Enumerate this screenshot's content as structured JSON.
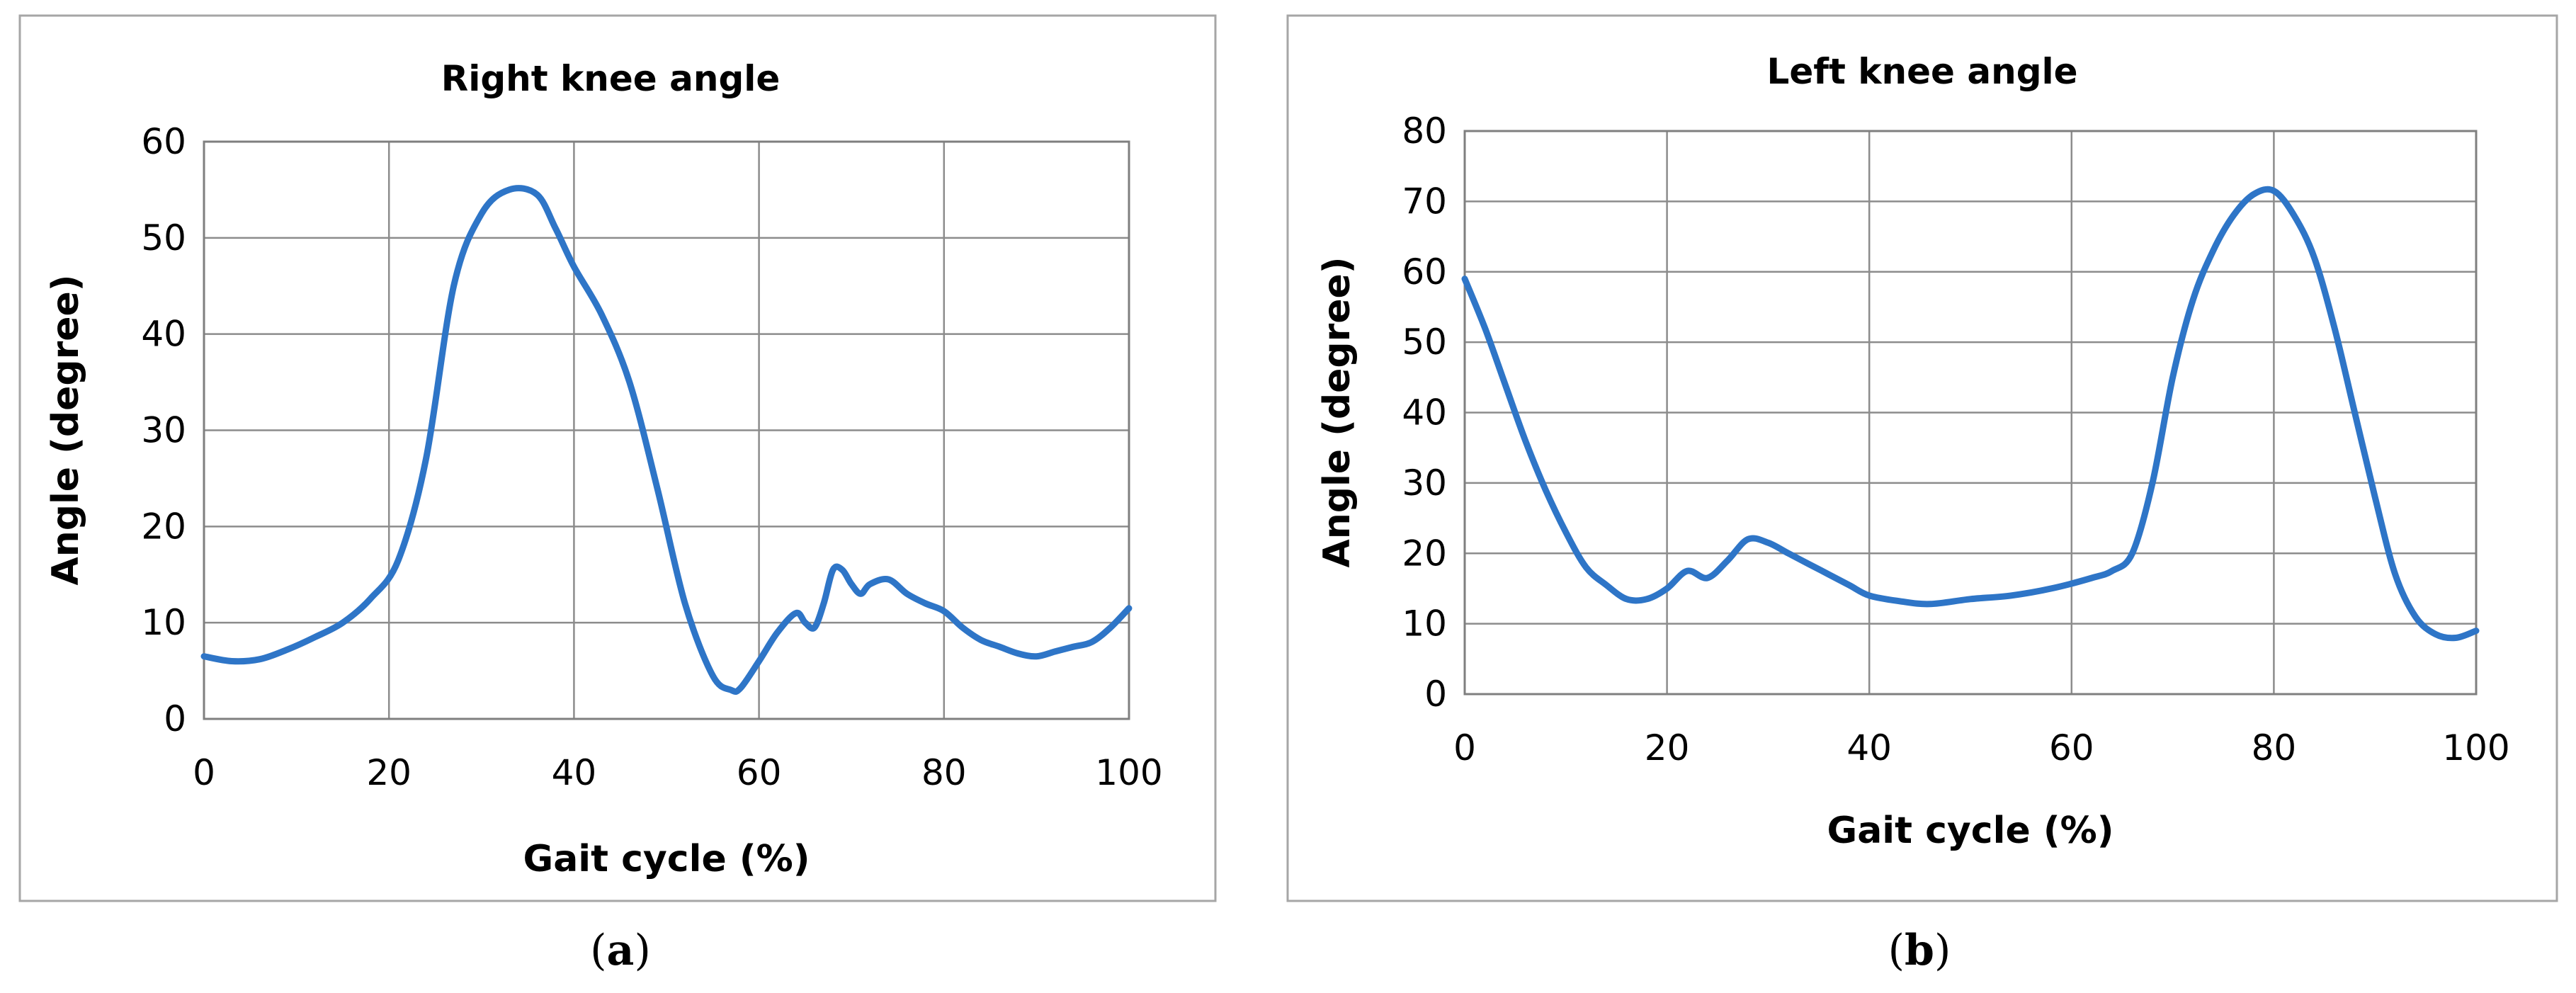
{
  "chart_data": [
    {
      "type": "line",
      "title": "Right knee angle",
      "xlabel": "Gait cycle (%)",
      "ylabel": "Angle (degree)",
      "xlim": [
        0,
        100
      ],
      "ylim": [
        0,
        60
      ],
      "xticks": [
        0,
        20,
        40,
        60,
        80,
        100
      ],
      "yticks": [
        0,
        10,
        20,
        30,
        40,
        50,
        60
      ],
      "grid": true,
      "caption_letter": "a",
      "color": "#2e75c7",
      "series": [
        {
          "x": [
            0,
            3,
            6,
            9,
            12,
            15,
            18,
            21,
            24,
            27,
            30,
            33,
            36,
            38,
            40,
            43,
            46,
            49,
            52,
            55,
            57,
            58,
            60,
            62,
            64,
            65,
            66,
            67,
            68,
            69,
            70,
            71,
            72,
            74,
            76,
            78,
            80,
            82,
            84,
            86,
            88,
            90,
            92,
            94,
            96,
            98,
            100
          ],
          "y": [
            6.5,
            6,
            6.2,
            7.2,
            8.5,
            10,
            12.5,
            16.5,
            27,
            45,
            52.5,
            55,
            54.5,
            51,
            47,
            42,
            35,
            24,
            12,
            4.5,
            3,
            3.2,
            6,
            9,
            11,
            10,
            9.5,
            12,
            15.5,
            15.5,
            14,
            13,
            14,
            14.5,
            13,
            12,
            11.2,
            9.5,
            8.2,
            7.5,
            6.8,
            6.5,
            7,
            7.5,
            8,
            9.5,
            11.5
          ]
        }
      ]
    },
    {
      "type": "line",
      "title": "Left knee angle",
      "xlabel": "Gait cycle (%)",
      "ylabel": "Angle (degree)",
      "xlim": [
        0,
        100
      ],
      "ylim": [
        0,
        80
      ],
      "xticks": [
        0,
        20,
        40,
        60,
        80,
        100
      ],
      "yticks": [
        0,
        10,
        20,
        30,
        40,
        50,
        60,
        70,
        80
      ],
      "grid": true,
      "caption_letter": "b",
      "color": "#2e75c7",
      "series": [
        {
          "x": [
            0,
            2,
            4,
            6,
            8,
            10,
            12,
            14,
            16,
            18,
            20,
            22,
            24,
            26,
            28,
            30,
            32,
            34,
            36,
            38,
            40,
            43,
            46,
            50,
            54,
            58,
            62,
            64,
            66,
            68,
            70,
            72,
            74,
            76,
            78,
            80,
            82,
            84,
            86,
            88,
            90,
            92,
            94,
            96,
            98,
            100
          ],
          "y": [
            59,
            52,
            44,
            36,
            29,
            23,
            18,
            15.5,
            13.5,
            13.5,
            15,
            17.5,
            16.5,
            19,
            22,
            21.5,
            20,
            18.5,
            17,
            15.5,
            14,
            13.2,
            12.8,
            13.5,
            14,
            15,
            16.5,
            17.5,
            20,
            30,
            45,
            56,
            63,
            68,
            71,
            71.5,
            68,
            62,
            52,
            40,
            28,
            17,
            11,
            8.5,
            8,
            9
          ]
        }
      ]
    }
  ]
}
